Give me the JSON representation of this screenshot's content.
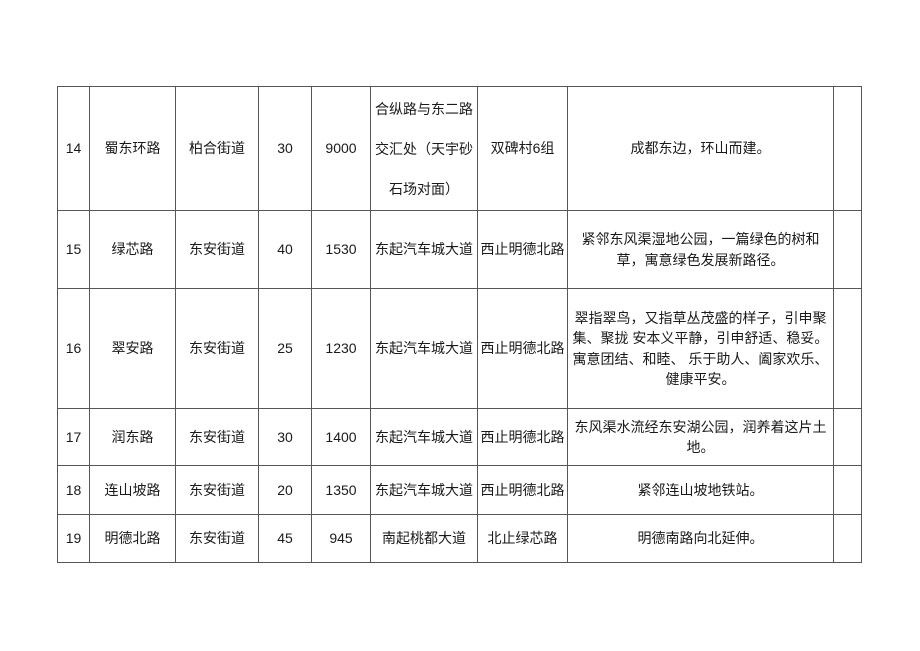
{
  "table": {
    "rows": [
      {
        "seq": "14",
        "name": "蜀东环路",
        "street": "柏合街道",
        "width": "30",
        "length": "9000",
        "start": "合纵路与东二路交汇处（天宇砂石场对面）",
        "end": "双碑村6组",
        "meaning": "成都东边，环山而建。",
        "extra": ""
      },
      {
        "seq": "15",
        "name": "绿芯路",
        "street": "东安街道",
        "width": "40",
        "length": "1530",
        "start": "东起汽车城大道",
        "end": "西止明德北路",
        "meaning": "紧邻东风渠湿地公园，一篇绿色的树和草，寓意绿色发展新路径。",
        "extra": ""
      },
      {
        "seq": "16",
        "name": "翠安路",
        "street": "东安街道",
        "width": "25",
        "length": "1230",
        "start": "东起汽车城大道",
        "end": "西止明德北路",
        "meaning": "翠指翠鸟，又指草丛茂盛的样子，引申聚集、聚拢 安本义平静，引申舒适、稳妥。寓意团结、和睦、 乐于助人、阖家欢乐、健康平安。",
        "extra": ""
      },
      {
        "seq": "17",
        "name": "润东路",
        "street": "东安街道",
        "width": "30",
        "length": "1400",
        "start": "东起汽车城大道",
        "end": "西止明德北路",
        "meaning": "东风渠水流经东安湖公园，润养着这片土地。",
        "extra": ""
      },
      {
        "seq": "18",
        "name": "连山坡路",
        "street": "东安街道",
        "width": "20",
        "length": "1350",
        "start": "东起汽车城大道",
        "end": "西止明德北路",
        "meaning": "紧邻连山坡地铁站。",
        "extra": ""
      },
      {
        "seq": "19",
        "name": "明德北路",
        "street": "东安街道",
        "width": "45",
        "length": "945",
        "start": "南起桃都大道",
        "end": "北止绿芯路",
        "meaning": "明德南路向北延伸。",
        "extra": ""
      }
    ]
  }
}
